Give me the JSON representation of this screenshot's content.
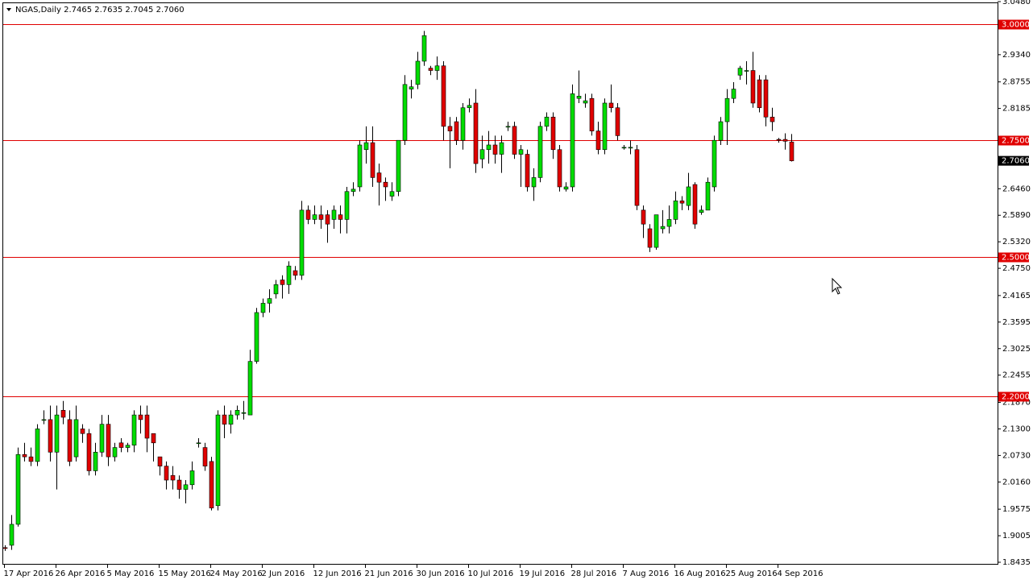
{
  "chart_data": {
    "type": "candlestick",
    "header": "NGAS,Daily  2.7465 2.7635 2.7045 2.7060",
    "up_color": "#00dd00",
    "down_color": "#e00000",
    "categories": [
      "17 Apr 2016",
      null,
      null,
      null,
      null,
      null,
      null,
      null,
      "26 Apr 2016",
      null,
      null,
      null,
      null,
      null,
      null,
      null,
      "5 May 2016",
      null,
      null,
      null,
      null,
      null,
      null,
      null,
      "15 May 2016",
      null,
      null,
      null,
      null,
      null,
      null,
      null,
      "24 May 2016",
      null,
      null,
      null,
      null,
      null,
      null,
      null,
      "2 Jun 2016",
      null,
      null,
      null,
      null,
      null,
      null,
      null,
      "12 Jun 2016",
      null,
      null,
      null,
      null,
      null,
      null,
      null,
      "21 Jun 2016",
      null,
      null,
      null,
      null,
      null,
      null,
      null,
      "30 Jun 2016",
      null,
      null,
      null,
      null,
      null,
      null,
      null,
      "10 Jul 2016",
      null,
      null,
      null,
      null,
      null,
      null,
      null,
      "19 Jul 2016",
      null,
      null,
      null,
      null,
      null,
      null,
      null,
      "28 Jul 2016",
      null,
      null,
      null,
      null,
      null,
      null,
      null,
      "7 Aug 2016",
      null,
      null,
      null,
      null,
      null,
      null,
      null,
      "16 Aug 2016",
      null,
      null,
      null,
      null,
      null,
      null,
      null,
      "25 Aug 2016",
      null,
      null,
      null,
      null,
      null,
      null,
      null,
      "4 Sep 2016",
      null,
      null
    ],
    "open": [
      1.875,
      1.88,
      1.925,
      2.075,
      2.07,
      2.06,
      2.15,
      2.15,
      2.08,
      2.17,
      2.15,
      2.07,
      2.13,
      2.12,
      2.04,
      2.08,
      2.14,
      2.07,
      2.1,
      2.09,
      2.095,
      2.16,
      2.16,
      2.12,
      2.07,
      2.05,
      2.03,
      2.02,
      2.0,
      2.01,
      2.1,
      2.09,
      2.06,
      1.965,
      2.16,
      2.14,
      2.16,
      2.165,
      2.16,
      2.275,
      2.38,
      2.4,
      2.42,
      2.45,
      2.44,
      2.47,
      2.46,
      2.6,
      2.58,
      2.59,
      2.59,
      2.58,
      2.59,
      2.58,
      2.64,
      2.65,
      2.73,
      2.745,
      2.68,
      2.66,
      2.63,
      2.64,
      2.75,
      2.86,
      2.87,
      2.92,
      2.905,
      2.9,
      2.91,
      2.78,
      2.79,
      2.75,
      2.82,
      2.83,
      2.71,
      2.73,
      2.74,
      2.72,
      2.78,
      2.78,
      2.72,
      2.72,
      2.65,
      2.67,
      2.78,
      2.8,
      2.73,
      2.645,
      2.65,
      2.84,
      2.83,
      2.84,
      2.77,
      2.73,
      2.83,
      2.82,
      2.735,
      2.735,
      2.73,
      2.6,
      2.56,
      2.52,
      2.56,
      2.565,
      2.58,
      2.62,
      2.61,
      2.655,
      2.595,
      2.6,
      2.65,
      2.75,
      2.79,
      2.84,
      2.89,
      2.9,
      2.9,
      2.88,
      2.88,
      2.8,
      2.752,
      2.752,
      2.7465
    ],
    "high": [
      1.88,
      1.945,
      2.09,
      2.1,
      2.09,
      2.14,
      2.17,
      2.18,
      2.18,
      2.19,
      2.17,
      2.18,
      2.14,
      2.13,
      2.1,
      2.16,
      2.16,
      2.1,
      2.11,
      2.1,
      2.17,
      2.18,
      2.18,
      2.12,
      2.07,
      2.06,
      2.05,
      2.03,
      2.02,
      2.06,
      2.11,
      2.1,
      2.07,
      2.17,
      2.18,
      2.17,
      2.18,
      2.19,
      2.3,
      2.39,
      2.41,
      2.43,
      2.45,
      2.46,
      2.49,
      2.48,
      2.62,
      2.61,
      2.61,
      2.61,
      2.6,
      2.61,
      2.61,
      2.65,
      2.66,
      2.75,
      2.78,
      2.78,
      2.7,
      2.67,
      2.66,
      2.75,
      2.89,
      2.88,
      2.94,
      2.985,
      2.91,
      2.93,
      2.92,
      2.8,
      2.8,
      2.83,
      2.84,
      2.86,
      2.76,
      2.77,
      2.76,
      2.76,
      2.79,
      2.79,
      2.74,
      2.73,
      2.69,
      2.79,
      2.81,
      2.81,
      2.74,
      2.66,
      2.87,
      2.9,
      2.85,
      2.85,
      2.79,
      2.84,
      2.87,
      2.83,
      2.74,
      2.75,
      2.74,
      2.61,
      2.57,
      2.59,
      2.6,
      2.61,
      2.64,
      2.63,
      2.68,
      2.66,
      2.61,
      2.67,
      2.76,
      2.8,
      2.86,
      2.875,
      2.91,
      2.92,
      2.94,
      2.89,
      2.89,
      2.82,
      2.755,
      2.765,
      2.7635
    ],
    "low": [
      1.868,
      1.87,
      1.92,
      2.06,
      2.05,
      2.05,
      2.14,
      2.06,
      2.0,
      2.14,
      2.05,
      2.06,
      2.1,
      2.03,
      2.03,
      2.07,
      2.05,
      2.06,
      2.08,
      2.08,
      2.08,
      2.12,
      2.08,
      2.06,
      2.03,
      2.0,
      2.0,
      1.98,
      1.97,
      2.0,
      2.09,
      2.04,
      1.955,
      1.955,
      2.11,
      2.12,
      2.15,
      2.15,
      2.16,
      2.27,
      2.37,
      2.38,
      2.41,
      2.41,
      2.42,
      2.45,
      2.45,
      2.57,
      2.57,
      2.56,
      2.53,
      2.56,
      2.55,
      2.55,
      2.63,
      2.64,
      2.7,
      2.65,
      2.61,
      2.62,
      2.62,
      2.63,
      2.74,
      2.84,
      2.86,
      2.91,
      2.89,
      2.88,
      2.75,
      2.69,
      2.74,
      2.73,
      2.81,
      2.68,
      2.69,
      2.7,
      2.7,
      2.68,
      2.77,
      2.71,
      2.65,
      2.64,
      2.62,
      2.66,
      2.77,
      2.71,
      2.64,
      2.64,
      2.64,
      2.83,
      2.82,
      2.76,
      2.72,
      2.72,
      2.81,
      2.75,
      2.73,
      2.72,
      2.6,
      2.54,
      2.51,
      2.515,
      2.55,
      2.55,
      2.57,
      2.6,
      2.6,
      2.56,
      2.59,
      2.6,
      2.64,
      2.74,
      2.74,
      2.83,
      2.88,
      2.87,
      2.82,
      2.81,
      2.78,
      2.77,
      2.745,
      2.73,
      2.7045
    ],
    "close": [
      1.873,
      1.925,
      2.075,
      2.07,
      2.06,
      2.13,
      2.15,
      2.08,
      2.16,
      2.155,
      2.06,
      2.15,
      2.12,
      2.04,
      2.08,
      2.14,
      2.07,
      2.09,
      2.09,
      2.095,
      2.16,
      2.15,
      2.11,
      2.1,
      2.05,
      2.02,
      2.02,
      2.0,
      2.01,
      2.04,
      2.1,
      2.05,
      1.96,
      2.16,
      2.14,
      2.16,
      2.17,
      2.165,
      2.275,
      2.38,
      2.4,
      2.41,
      2.44,
      2.44,
      2.48,
      2.46,
      2.6,
      2.58,
      2.59,
      2.58,
      2.57,
      2.6,
      2.58,
      2.64,
      2.645,
      2.74,
      2.745,
      2.67,
      2.66,
      2.65,
      2.64,
      2.75,
      2.87,
      2.865,
      2.92,
      2.975,
      2.9,
      2.91,
      2.78,
      2.77,
      2.75,
      2.82,
      2.825,
      2.7,
      2.73,
      2.74,
      2.72,
      2.745,
      2.78,
      2.72,
      2.73,
      2.65,
      2.67,
      2.78,
      2.8,
      2.73,
      2.65,
      2.65,
      2.85,
      2.845,
      2.835,
      2.77,
      2.73,
      2.83,
      2.82,
      2.76,
      2.735,
      2.735,
      2.61,
      2.57,
      2.52,
      2.59,
      2.565,
      2.58,
      2.62,
      2.615,
      2.65,
      2.57,
      2.6,
      2.66,
      2.75,
      2.79,
      2.84,
      2.86,
      2.905,
      2.9,
      2.83,
      2.82,
      2.8,
      2.79,
      2.751,
      2.748,
      2.706
    ],
    "ylim": [
      1.8435,
      3.048
    ],
    "yticks": [
      {
        "value": 3.048,
        "label": "3.0480"
      },
      {
        "value": 2.934,
        "label": "2.9340"
      },
      {
        "value": 2.8755,
        "label": "2.8755"
      },
      {
        "value": 2.8185,
        "label": "2.8185"
      },
      {
        "value": 2.646,
        "label": "2.6460"
      },
      {
        "value": 2.589,
        "label": "2.5890"
      },
      {
        "value": 2.532,
        "label": "2.5320"
      },
      {
        "value": 2.475,
        "label": "2.4750"
      },
      {
        "value": 2.4165,
        "label": "2.4165"
      },
      {
        "value": 2.3595,
        "label": "2.3595"
      },
      {
        "value": 2.3025,
        "label": "2.3025"
      },
      {
        "value": 2.2455,
        "label": "2.2455"
      },
      {
        "value": 2.187,
        "label": "2.1870"
      },
      {
        "value": 2.13,
        "label": "2.1300"
      },
      {
        "value": 2.073,
        "label": "2.0730"
      },
      {
        "value": 2.016,
        "label": "2.0160"
      },
      {
        "value": 1.9575,
        "label": "1.9575"
      },
      {
        "value": 1.9005,
        "label": "1.9005"
      },
      {
        "value": 1.8435,
        "label": "1.8435"
      }
    ],
    "hlines": [
      {
        "value": 3,
        "label": "3.0000"
      },
      {
        "value": 2.75,
        "label": "2.7500"
      },
      {
        "value": 2.5,
        "label": "2.5000"
      },
      {
        "value": 2.2,
        "label": "2.2000"
      }
    ],
    "hline_color": "#e00000",
    "last_price": {
      "value": 2.706,
      "label": "2.7060"
    }
  }
}
